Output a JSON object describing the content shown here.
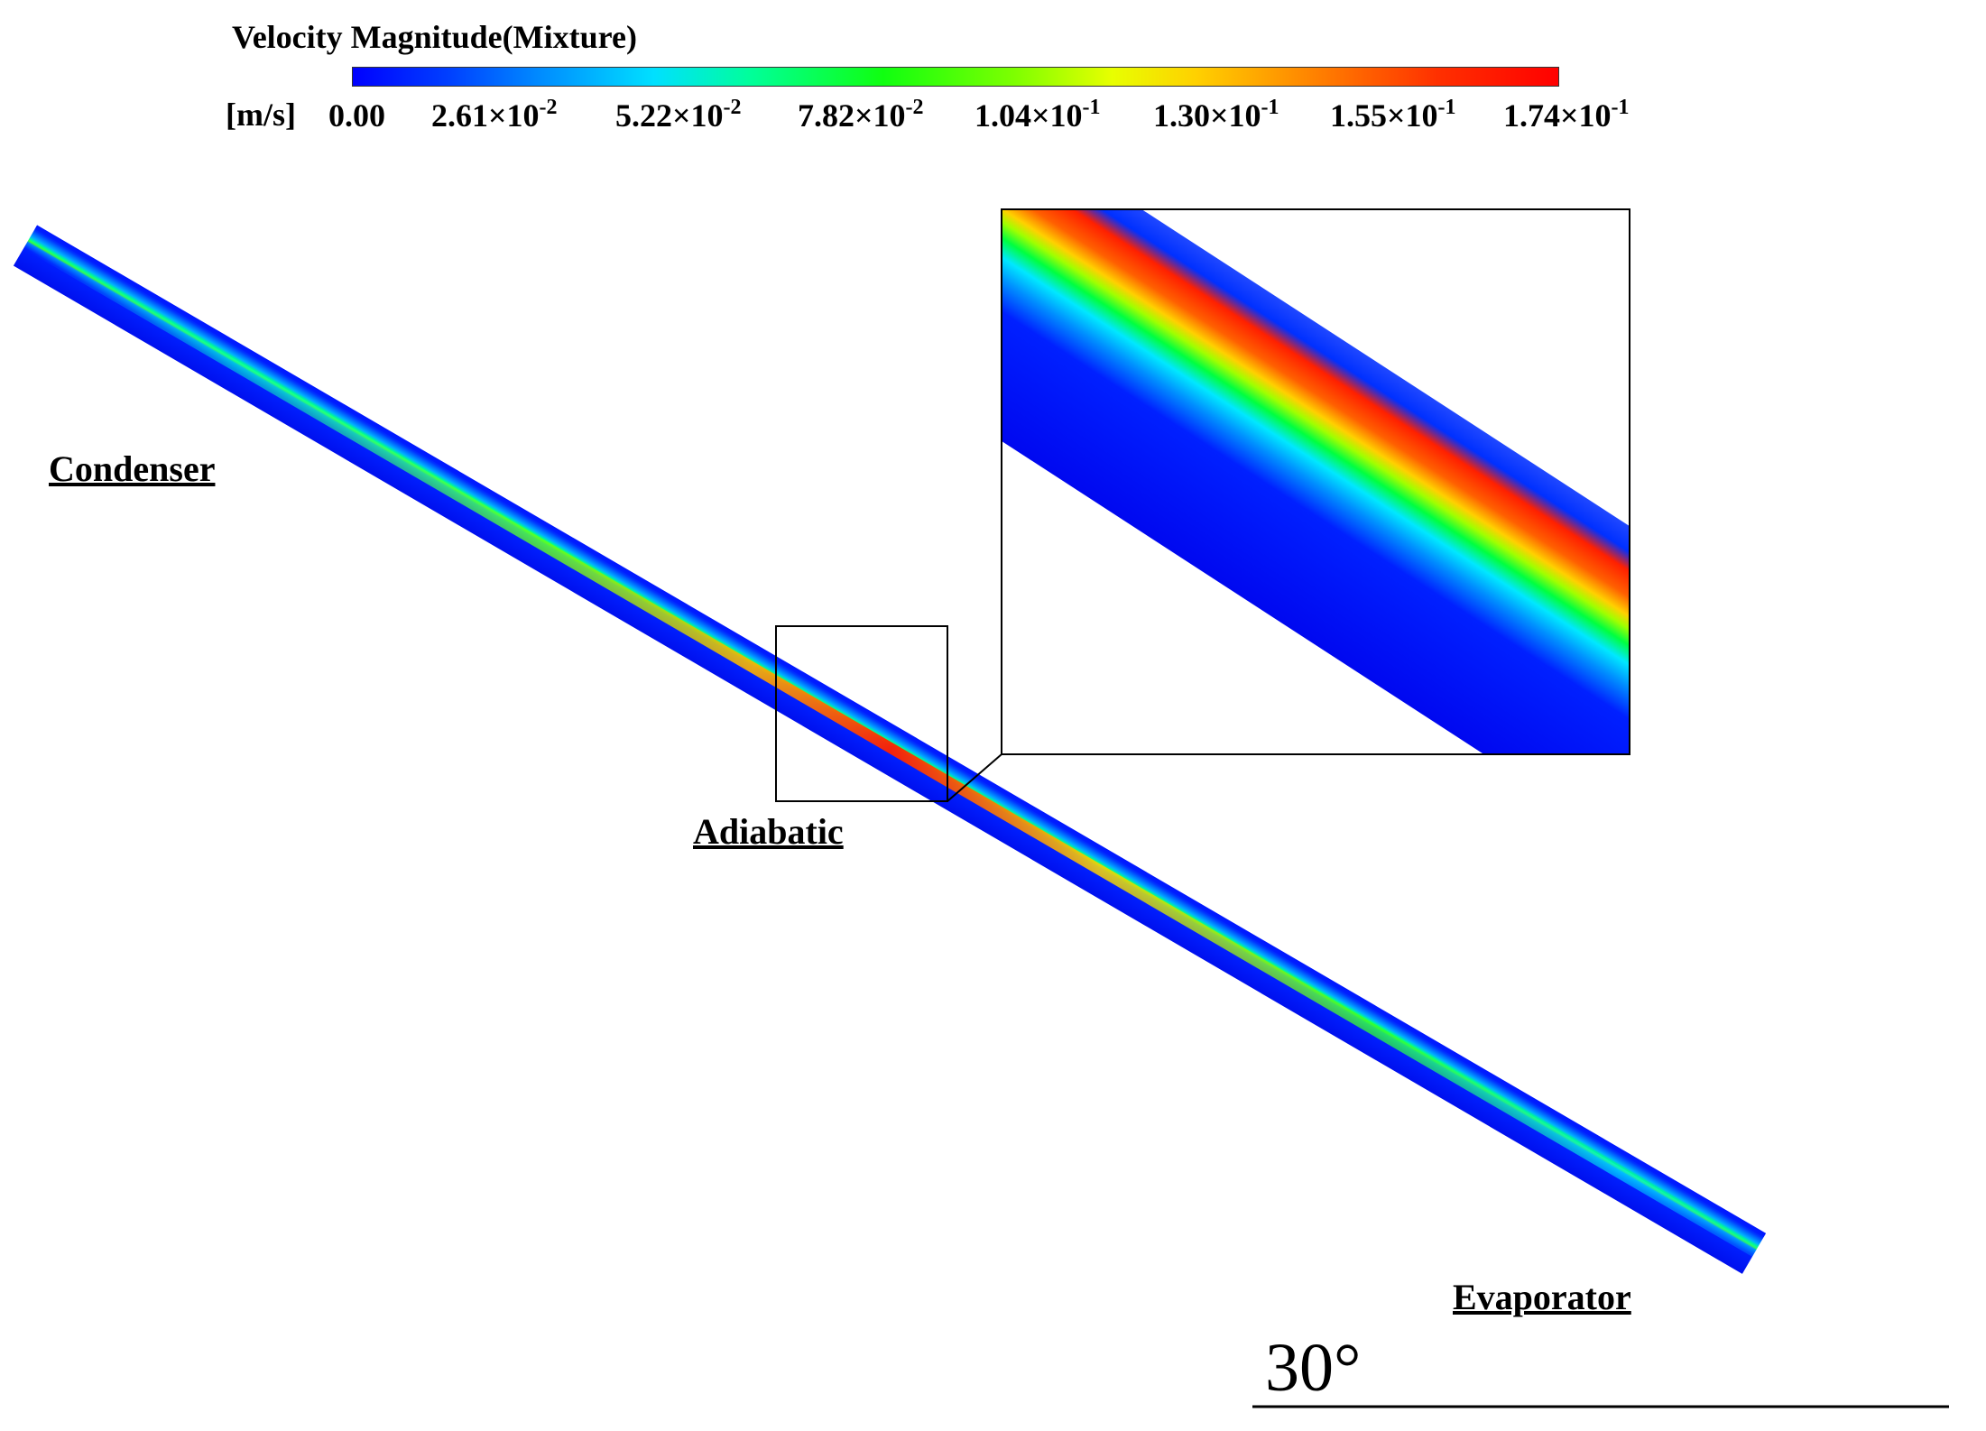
{
  "legend": {
    "title": "Velocity Magnitude(Mixture)",
    "unit": "[m/s]",
    "ticks": [
      {
        "mantissa": "0.00",
        "exponent": ""
      },
      {
        "mantissa": "2.61×10",
        "exponent": "-2"
      },
      {
        "mantissa": "5.22×10",
        "exponent": "-2"
      },
      {
        "mantissa": "7.82×10",
        "exponent": "-2"
      },
      {
        "mantissa": "1.04×10",
        "exponent": "-1"
      },
      {
        "mantissa": "1.30×10",
        "exponent": "-1"
      },
      {
        "mantissa": "1.55×10",
        "exponent": "-1"
      },
      {
        "mantissa": "1.74×10",
        "exponent": "-1"
      }
    ],
    "colormap": [
      "#0000ff",
      "#0090ff",
      "#00e0ff",
      "#00ff9a",
      "#10ff10",
      "#7fff00",
      "#e8ff00",
      "#ffd000",
      "#ff8000",
      "#ff3000",
      "#ff0000"
    ]
  },
  "labels": {
    "condenser": "Condenser",
    "adiabatic": "Adiabatic",
    "evaporator": "Evaporator",
    "angle": "30°"
  },
  "colors": {
    "pipe_low": "#0000ff",
    "pipe_mid": "#00e0ff",
    "pipe_high": "#ff0000",
    "frame": "#000000"
  }
}
